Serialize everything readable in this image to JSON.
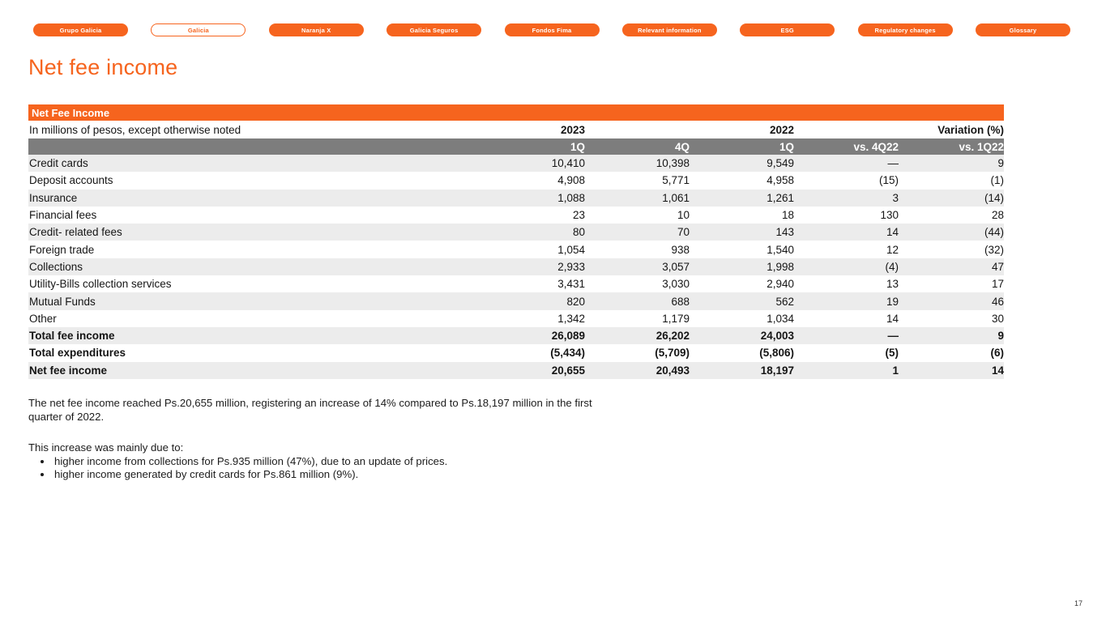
{
  "page": {
    "title": "Net fee income",
    "page_number": "17"
  },
  "colors": {
    "accent_orange": "#F6641E",
    "header_gray": "#7D7D7D",
    "row_alt_gray": "#ECECEC"
  },
  "nav": {
    "buttons": [
      {
        "id": "grupo-galicia",
        "label": "Grupo Galicia",
        "active": false
      },
      {
        "id": "galicia",
        "label": "Galicia",
        "active": true
      },
      {
        "id": "naranja-x",
        "label": "Naranja X",
        "active": false
      },
      {
        "id": "galicia-seguros",
        "label": "Galicia Seguros",
        "active": false
      },
      {
        "id": "fondos-fima",
        "label": "Fondos Fima",
        "active": false
      },
      {
        "id": "relevant-information",
        "label": "Relevant information",
        "active": false
      },
      {
        "id": "esg",
        "label": "ESG",
        "active": false
      },
      {
        "id": "regulatory-changes",
        "label": "Regulatory changes",
        "active": false
      },
      {
        "id": "glossary",
        "label": "Glossary",
        "active": false
      }
    ]
  },
  "table": {
    "band_title": "Net Fee Income",
    "subtitle": "In millions of pesos, except otherwise noted",
    "year_headers": {
      "y2023": "2023",
      "y2022": "2022",
      "variation": "Variation (%)"
    },
    "quarter_headers": [
      "1Q",
      "4Q",
      "1Q",
      "vs. 4Q22",
      "vs. 1Q22"
    ],
    "rows": [
      {
        "label": "Credit cards",
        "bold": false,
        "values": [
          "10,410",
          "10,398",
          "9,549",
          "—",
          "9"
        ]
      },
      {
        "label": "Deposit accounts",
        "bold": false,
        "values": [
          "4,908",
          "5,771",
          "4,958",
          "(15)",
          "(1)"
        ]
      },
      {
        "label": "Insurance",
        "bold": false,
        "values": [
          "1,088",
          "1,061",
          "1,261",
          "3",
          "(14)"
        ]
      },
      {
        "label": "Financial fees",
        "bold": false,
        "values": [
          "23",
          "10",
          "18",
          "130",
          "28"
        ]
      },
      {
        "label": "Credit- related fees",
        "bold": false,
        "values": [
          "80",
          "70",
          "143",
          "14",
          "(44)"
        ]
      },
      {
        "label": "Foreign trade",
        "bold": false,
        "values": [
          "1,054",
          "938",
          "1,540",
          "12",
          "(32)"
        ]
      },
      {
        "label": "Collections",
        "bold": false,
        "values": [
          "2,933",
          "3,057",
          "1,998",
          "(4)",
          "47"
        ]
      },
      {
        "label": "Utility-Bills collection services",
        "bold": false,
        "values": [
          "3,431",
          "3,030",
          "2,940",
          "13",
          "17"
        ]
      },
      {
        "label": "Mutual Funds",
        "bold": false,
        "values": [
          "820",
          "688",
          "562",
          "19",
          "46"
        ]
      },
      {
        "label": "Other",
        "bold": false,
        "values": [
          "1,342",
          "1,179",
          "1,034",
          "14",
          "30"
        ]
      },
      {
        "label": "Total fee income",
        "bold": true,
        "values": [
          "26,089",
          "26,202",
          "24,003",
          "—",
          "9"
        ]
      },
      {
        "label": "Total expenditures",
        "bold": true,
        "values": [
          "(5,434)",
          "(5,709)",
          "(5,806)",
          "(5)",
          "(6)"
        ]
      },
      {
        "label": "Net fee income",
        "bold": true,
        "values": [
          "20,655",
          "20,493",
          "18,197",
          "1",
          "14"
        ]
      }
    ]
  },
  "notes": {
    "paragraph1": "The net fee income reached Ps.20,655 million, registering an increase of 14% compared to Ps.18,197 million in the first quarter of 2022.",
    "intro": "This increase was mainly due to:",
    "bullets": [
      "higher income from collections for Ps.935 million (47%), due to an update of prices.",
      "higher income generated by credit cards for Ps.861 million (9%)."
    ]
  }
}
